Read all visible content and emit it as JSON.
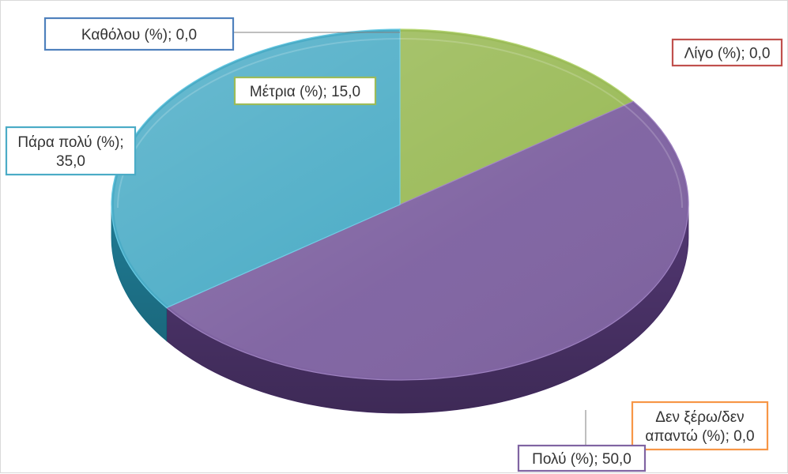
{
  "chart_data": {
    "type": "pie",
    "title": "",
    "slices": [
      {
        "label": "Καθόλου (%)",
        "value": 0.0,
        "display_value": "0,0",
        "color": "#4f81bd"
      },
      {
        "label": "Λίγο (%)",
        "value": 0.0,
        "display_value": "0,0",
        "color": "#c0504d"
      },
      {
        "label": "Μέτρια (%)",
        "value": 15.0,
        "display_value": "15,0",
        "color": "#9bbb59"
      },
      {
        "label": "Πολύ (%)",
        "value": 50.0,
        "display_value": "50,0",
        "color": "#8064a2"
      },
      {
        "label": "Πάρα πολύ (%)",
        "value": 35.0,
        "display_value": "35,0",
        "color": "#4bacc6"
      },
      {
        "label": "Δεν ξέρω/δεν απαντώ (%)",
        "value": 0.0,
        "display_value": "0,0",
        "color": "#f79646"
      }
    ],
    "data_labels": [
      {
        "key": "kathe",
        "lines": [
          "Καθόλου (%); 0,0"
        ],
        "border_color": "#4f81bd"
      },
      {
        "key": "ligo",
        "lines": [
          "Λίγο (%); 0,0"
        ],
        "border_color": "#c0504d"
      },
      {
        "key": "metria",
        "lines": [
          "Μέτρια (%); 15,0"
        ],
        "border_color": "#9bbb59"
      },
      {
        "key": "para-poly",
        "lines": [
          "Πάρα πολύ (%);",
          "35,0"
        ],
        "border_color": "#4bacc6"
      },
      {
        "key": "den-xero",
        "lines": [
          "Δεν ξέρω/δεν",
          "απαντώ (%); 0,0"
        ],
        "border_color": "#f79646"
      },
      {
        "key": "poly",
        "lines": [
          "Πολύ (%); 50,0"
        ],
        "border_color": "#8064a2"
      }
    ]
  }
}
